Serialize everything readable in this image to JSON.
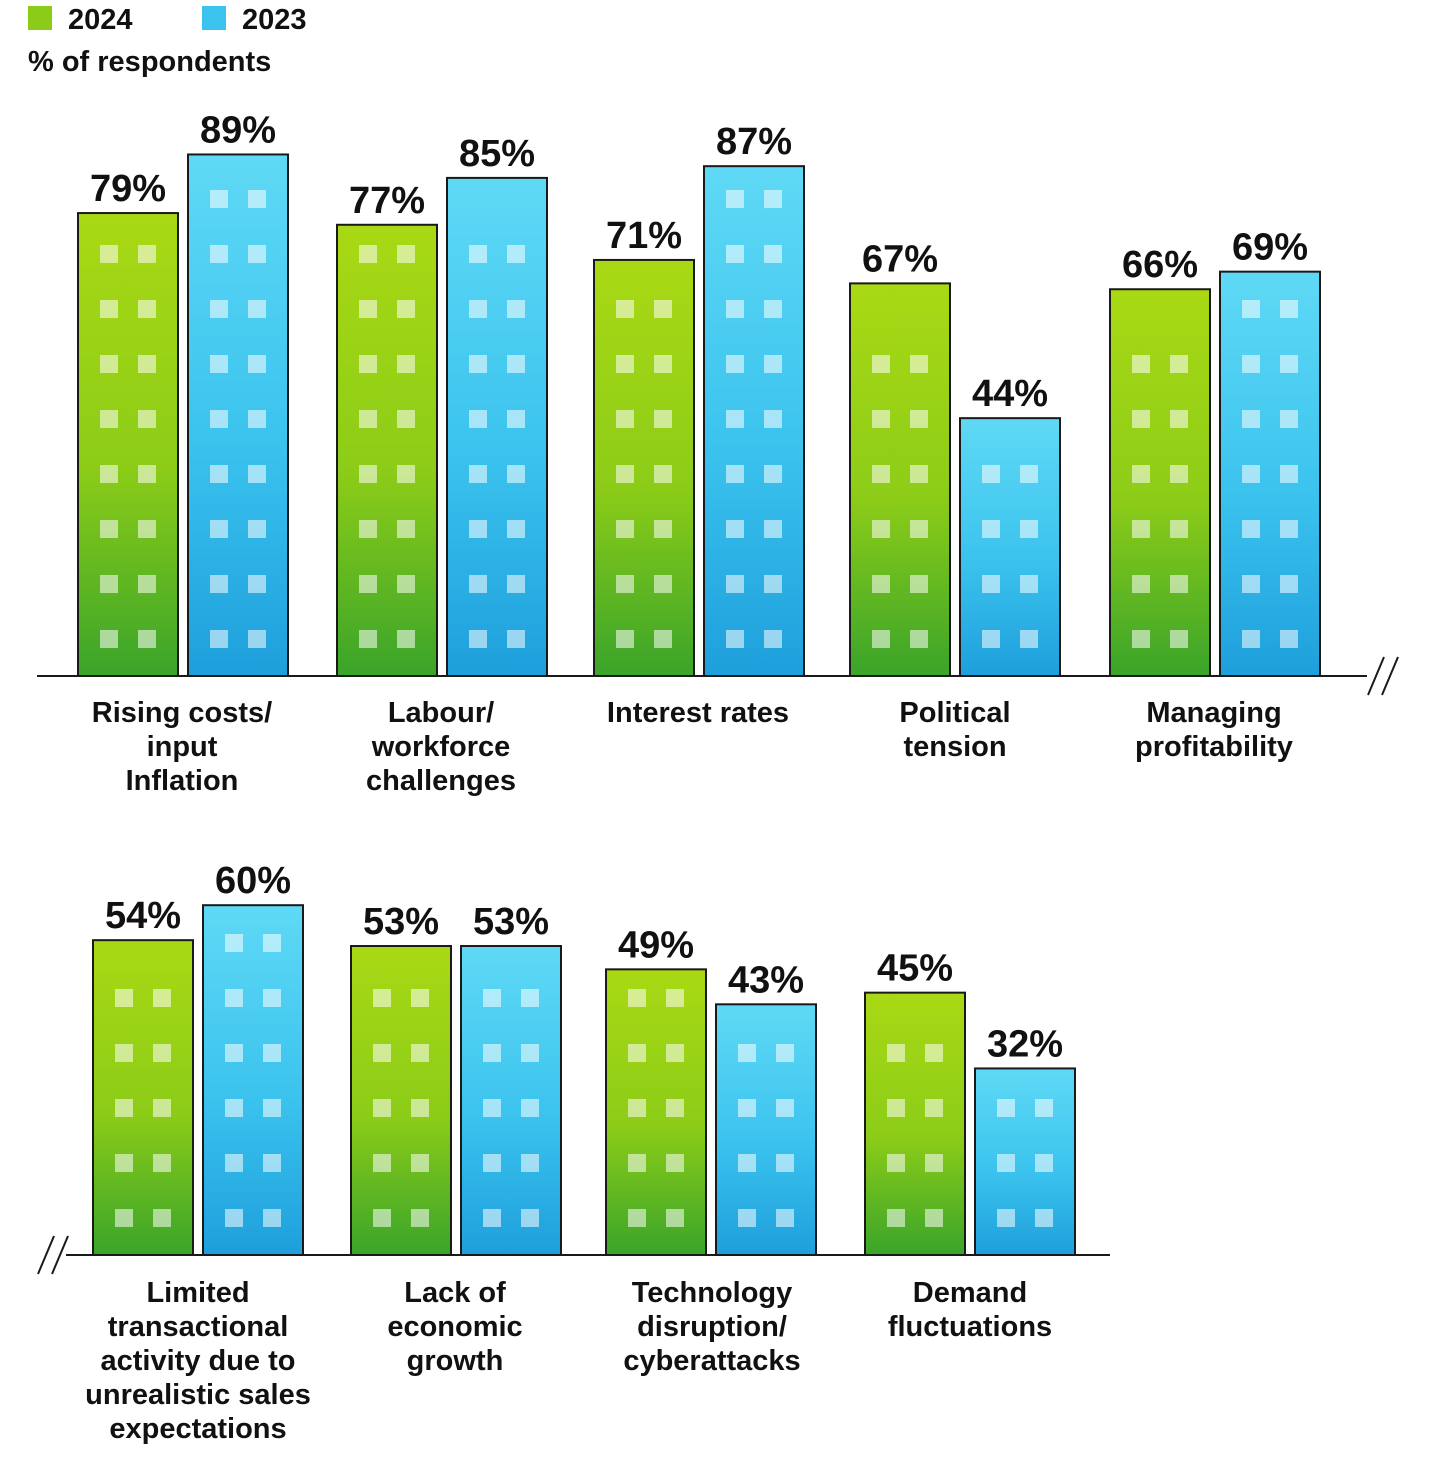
{
  "chart_data": {
    "type": "bar",
    "ylabel": "% of respondents",
    "legend": {
      "placement": "top-left",
      "items": [
        {
          "name": "2024",
          "color": "#8ccc18"
        },
        {
          "name": "2023",
          "color": "#3bc3ee"
        }
      ]
    },
    "series": [
      {
        "name": "2024",
        "color": "#8ccc18",
        "color_dark": "#3aa42a",
        "color_light": "#a9d914"
      },
      {
        "name": "2023",
        "color": "#3bc3ee",
        "color_dark": "#1e9fdc",
        "color_light": "#5fd9f5"
      }
    ],
    "value_format": "%",
    "panels": [
      {
        "broken_axis": "right",
        "groups": [
          {
            "label": [
              "Rising costs/",
              "input",
              "Inflation"
            ],
            "values": [
              79,
              89
            ],
            "value_labels": [
              "79%",
              "89%"
            ]
          },
          {
            "label": [
              "Labour/",
              "workforce",
              "challenges"
            ],
            "values": [
              77,
              85
            ],
            "value_labels": [
              "77%",
              "85%"
            ]
          },
          {
            "label": [
              "Interest rates"
            ],
            "values": [
              71,
              87
            ],
            "value_labels": [
              "71%",
              "87%"
            ]
          },
          {
            "label": [
              "Political",
              "tension"
            ],
            "values": [
              67,
              44
            ],
            "value_labels": [
              "67%",
              "44%"
            ]
          },
          {
            "label": [
              "Managing",
              "profitability"
            ],
            "values": [
              66,
              69
            ],
            "value_labels": [
              "66%",
              "69%"
            ]
          }
        ]
      },
      {
        "broken_axis": "left",
        "groups": [
          {
            "label": [
              "Limited",
              "transactional",
              "activity due to",
              "unrealistic sales",
              "expectations"
            ],
            "values": [
              54,
              60
            ],
            "value_labels": [
              "54%",
              "60%"
            ]
          },
          {
            "label": [
              "Lack of",
              "economic",
              "growth"
            ],
            "values": [
              53,
              53
            ],
            "value_labels": [
              "53%",
              "53%"
            ]
          },
          {
            "label": [
              "Technology",
              "disruption/",
              "cyberattacks"
            ],
            "values": [
              49,
              43
            ],
            "value_labels": [
              "49%",
              "43%"
            ]
          },
          {
            "label": [
              "Demand",
              "fluctuations"
            ],
            "values": [
              45,
              32
            ],
            "value_labels": [
              "45%",
              "32%"
            ]
          }
        ]
      }
    ]
  }
}
